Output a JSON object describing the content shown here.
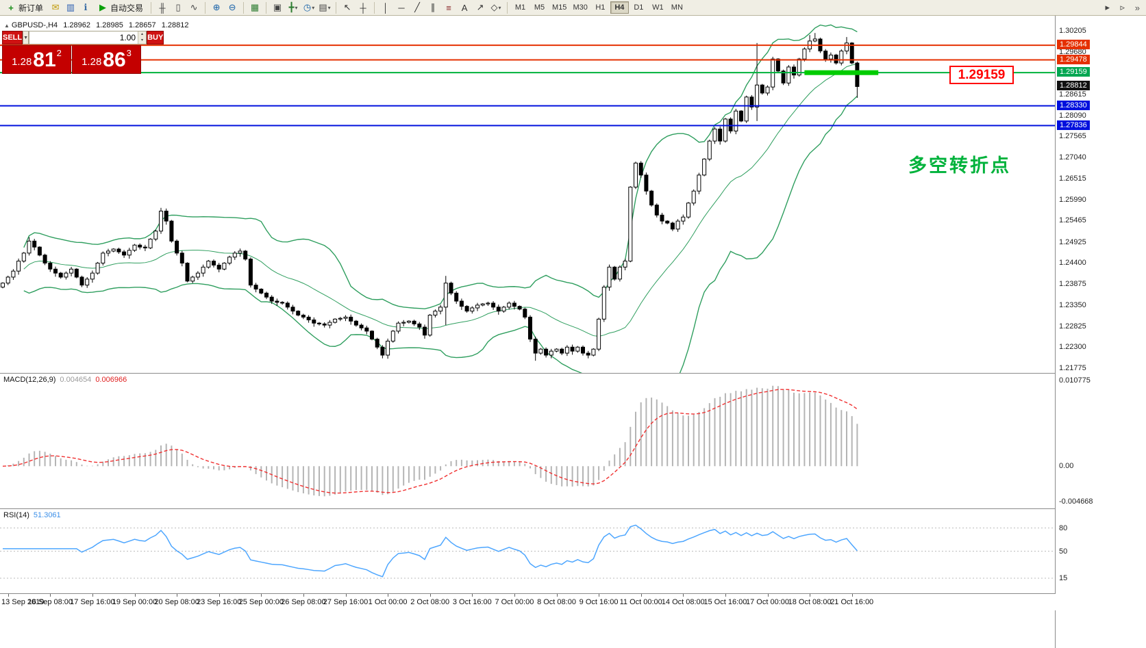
{
  "toolbar": {
    "new_order_label": "新订单",
    "new_order_glyph": "+",
    "autotrading_label": "自动交易",
    "autotrading_glyph": "▶",
    "overflow": "»",
    "dd_glyph": "▾",
    "left_icons": [
      {
        "name": "mail-icon",
        "glyph": "✉",
        "color": "#c09a08"
      },
      {
        "name": "market-watch-icon",
        "glyph": "▥",
        "color": "#2a5db0"
      },
      {
        "name": "info-icon",
        "glyph": "ℹ",
        "color": "#3b6ea5"
      }
    ],
    "icon_groups": [
      [
        {
          "name": "bar-chart-icon",
          "glyph": "╫",
          "color": "#444"
        },
        {
          "name": "candlestick-icon",
          "glyph": "▯",
          "color": "#444"
        },
        {
          "name": "line-chart-icon",
          "glyph": "∿",
          "color": "#444"
        }
      ],
      [
        {
          "name": "zoom-in-icon",
          "glyph": "⊕",
          "color": "#1560a8"
        },
        {
          "name": "zoom-out-icon",
          "glyph": "⊖",
          "color": "#1560a8"
        }
      ],
      [
        {
          "name": "grid-icon",
          "glyph": "▦",
          "color": "#2e7d32"
        }
      ],
      [
        {
          "name": "tile-windows-icon",
          "glyph": "▣",
          "color": "#444"
        },
        {
          "name": "crosshair-new-icon",
          "glyph": "╋",
          "color": "#2e7d32",
          "dd": true
        },
        {
          "name": "period-clock-icon",
          "glyph": "◷",
          "color": "#1560a8",
          "dd": true
        },
        {
          "name": "indicators-icon",
          "glyph": "▤",
          "color": "#444",
          "dd": true
        }
      ],
      [
        {
          "name": "cursor-icon",
          "glyph": "↖",
          "color": "#333"
        },
        {
          "name": "crosshair-icon",
          "glyph": "┼",
          "color": "#333"
        }
      ],
      [
        {
          "name": "vertical-line-icon",
          "glyph": "│",
          "color": "#333"
        },
        {
          "name": "horizontal-line-icon",
          "glyph": "─",
          "color": "#333"
        },
        {
          "name": "trendline-icon",
          "glyph": "╱",
          "color": "#333"
        },
        {
          "name": "channel-icon",
          "glyph": "∥",
          "color": "#333"
        },
        {
          "name": "fibonacci-icon",
          "glyph": "≡",
          "color": "#8a2b2b"
        },
        {
          "name": "text-icon",
          "glyph": "A",
          "color": "#333"
        },
        {
          "name": "arrow-tool-icon",
          "glyph": "↗",
          "color": "#333"
        },
        {
          "name": "shapes-icon",
          "glyph": "◇",
          "color": "#333",
          "dd": true
        }
      ]
    ],
    "timeframes": [
      "M1",
      "M5",
      "M15",
      "M30",
      "H1",
      "H4",
      "D1",
      "W1",
      "MN"
    ],
    "active_timeframe": "H4",
    "right_icons": [
      {
        "name": "chart-autoscroll-icon",
        "glyph": "▸",
        "color": "#444"
      },
      {
        "name": "chart-shift-icon",
        "glyph": "▹",
        "color": "#444"
      }
    ]
  },
  "chart": {
    "collapse_icon": "▲",
    "symbol": "GBPUSD-,H4",
    "ohlc": {
      "open": "1.28962",
      "high": "1.28985",
      "low": "1.28657",
      "close": "1.28812"
    },
    "one_click": {
      "sell_label": "SELL",
      "buy_label": "BUY",
      "volume": "1.00",
      "dropdown_glyph": "▼",
      "spin_up": "▴",
      "spin_down": "▾",
      "bid": {
        "prefix": "1.28",
        "big": "81",
        "sup": "2"
      },
      "ask": {
        "prefix": "1.28",
        "big": "86",
        "sup": "3"
      }
    },
    "annotation": {
      "text": "多空转折点",
      "color": "#00b23b"
    },
    "callout": {
      "text": "1.29159"
    }
  },
  "chart_data": {
    "type": "candlestick",
    "title": "GBPUSD H4 with Bollinger Bands, MACD(12,26,9), RSI(14)",
    "price_axis": {
      "top_price": 1.30205,
      "bottom_price": 1.21775,
      "ticks": [
        "1.30205",
        "1.29680",
        "1.28615",
        "1.28090",
        "1.27565",
        "1.27040",
        "1.26515",
        "1.25990",
        "1.25465",
        "1.24925",
        "1.24400",
        "1.23875",
        "1.23350",
        "1.22825",
        "1.22300",
        "1.21775"
      ],
      "markers": [
        {
          "text": "1.29844",
          "price": 1.29844,
          "bg": "#e53000"
        },
        {
          "text": "1.29478",
          "price": 1.29478,
          "bg": "#e53000"
        },
        {
          "text": "1.29159",
          "price": 1.29159,
          "bg": "#00a651"
        },
        {
          "text": "1.28812",
          "price": 1.28812,
          "bg": "#111111"
        },
        {
          "text": "1.28330",
          "price": 1.2833,
          "bg": "#0010dd"
        },
        {
          "text": "1.27836",
          "price": 1.27836,
          "bg": "#0010dd"
        }
      ]
    },
    "levels": [
      {
        "name": "resistance-line-1",
        "price": 1.29844,
        "color": "#e53000",
        "width": 2
      },
      {
        "name": "resistance-line-2",
        "price": 1.29478,
        "color": "#e53000",
        "width": 2
      },
      {
        "name": "pivot-line",
        "price": 1.29159,
        "color": "#00b23b",
        "width": 2
      },
      {
        "name": "support-line-1",
        "price": 1.2833,
        "color": "#0010dd",
        "width": 2
      },
      {
        "name": "support-line-2",
        "price": 1.27836,
        "color": "#0010dd",
        "width": 2
      }
    ],
    "highlight_segment": {
      "price": 1.29159,
      "start_index": 152,
      "end_index": 166,
      "color": "#00cc00",
      "thickness": 7
    },
    "candles": {
      "first_open": 1.238,
      "closes": [
        1.239,
        1.2405,
        1.242,
        1.2445,
        1.2465,
        1.2495,
        1.248,
        1.246,
        1.244,
        1.2425,
        1.2415,
        1.2405,
        1.2415,
        1.2425,
        1.2405,
        1.2385,
        1.24,
        1.2415,
        1.244,
        1.2465,
        1.247,
        1.2475,
        1.2468,
        1.246,
        1.2472,
        1.2485,
        1.248,
        1.2478,
        1.25,
        1.252,
        1.257,
        1.2545,
        1.2495,
        1.2465,
        1.244,
        1.2395,
        1.2405,
        1.2415,
        1.243,
        1.2445,
        1.2435,
        1.2425,
        1.244,
        1.2455,
        1.2465,
        1.247,
        1.245,
        1.2385,
        1.2375,
        1.2365,
        1.2355,
        1.2345,
        1.2342,
        1.234,
        1.233,
        1.232,
        1.231,
        1.2305,
        1.2298,
        1.229,
        1.2288,
        1.2285,
        1.2292,
        1.23,
        1.2302,
        1.2305,
        1.2295,
        1.2285,
        1.2278,
        1.227,
        1.225,
        1.223,
        1.221,
        1.2245,
        1.227,
        1.229,
        1.2292,
        1.2295,
        1.2288,
        1.228,
        1.226,
        1.231,
        1.232,
        1.233,
        1.239,
        1.2365,
        1.2345,
        1.2332,
        1.232,
        1.2328,
        1.2335,
        1.2338,
        1.234,
        1.233,
        1.232,
        1.233,
        1.234,
        1.2332,
        1.2325,
        1.2305,
        1.225,
        1.2215,
        1.2225,
        1.221,
        1.222,
        1.2225,
        1.2215,
        1.223,
        1.222,
        1.223,
        1.2215,
        1.221,
        1.2225,
        1.23,
        1.238,
        1.243,
        1.24,
        1.243,
        1.2445,
        1.263,
        1.269,
        1.266,
        1.262,
        1.2585,
        1.256,
        1.2545,
        1.254,
        1.2525,
        1.2545,
        1.2555,
        1.259,
        1.262,
        1.266,
        1.27,
        1.2745,
        1.2775,
        1.2745,
        1.28,
        1.277,
        1.282,
        1.2795,
        1.2855,
        1.283,
        1.2885,
        1.2865,
        1.288,
        1.295,
        1.292,
        1.289,
        1.293,
        1.291,
        1.295,
        1.2975,
        1.2995,
        1.3,
        1.297,
        1.295,
        1.296,
        1.294,
        1.297,
        1.299,
        1.294,
        1.28812
      ],
      "wick_overrides": {
        "5": {
          "h": 1.2505
        },
        "30": {
          "h": 1.2578
        },
        "72": {
          "l": 1.2202
        },
        "84": {
          "h": 1.2408,
          "l": 1.2285
        },
        "101": {
          "l": 1.2196
        },
        "143": {
          "h": 1.299,
          "l": 1.2795
        },
        "153": {
          "h": 1.301
        },
        "154": {
          "h": 1.3015
        },
        "160": {
          "h": 1.3005
        },
        "162": {
          "l": 1.2853
        }
      },
      "bull_color": "#ffffff",
      "bear_color": "#000000",
      "outline_color": "#000000"
    },
    "bollinger": {
      "period": 20,
      "deviation": 2,
      "color": "#2e9e5e"
    },
    "macd": {
      "label": "MACD(12,26,9)",
      "value1": "0.004654",
      "value2": "0.006966",
      "axis_top": "0.010775",
      "axis_zero": "0.00",
      "axis_bottom": "-0.004668",
      "bar_color": "#b4b4b4",
      "signal_color": "#f03030"
    },
    "rsi": {
      "label": "RSI(14)",
      "value": "51.3061",
      "levels": [
        80,
        50,
        15
      ],
      "axis_labels": [
        "80",
        "50",
        "15"
      ],
      "color": "#4da6ff"
    },
    "time_labels": [
      "13 Sep 2019",
      "16 Sep 08:00",
      "17 Sep 16:00",
      "19 Sep 00:00",
      "20 Sep 08:00",
      "23 Sep 16:00",
      "25 Sep 00:00",
      "26 Sep 08:00",
      "27 Sep 16:00",
      "1 Oct 00:00",
      "2 Oct 08:00",
      "3 Oct 16:00",
      "7 Oct 00:00",
      "8 Oct 08:00",
      "9 Oct 16:00",
      "11 Oct 00:00",
      "14 Oct 08:00",
      "15 Oct 16:00",
      "17 Oct 00:00",
      "18 Oct 08:00",
      "21 Oct 16:00"
    ],
    "first_label_index": 1,
    "label_step": 8
  }
}
